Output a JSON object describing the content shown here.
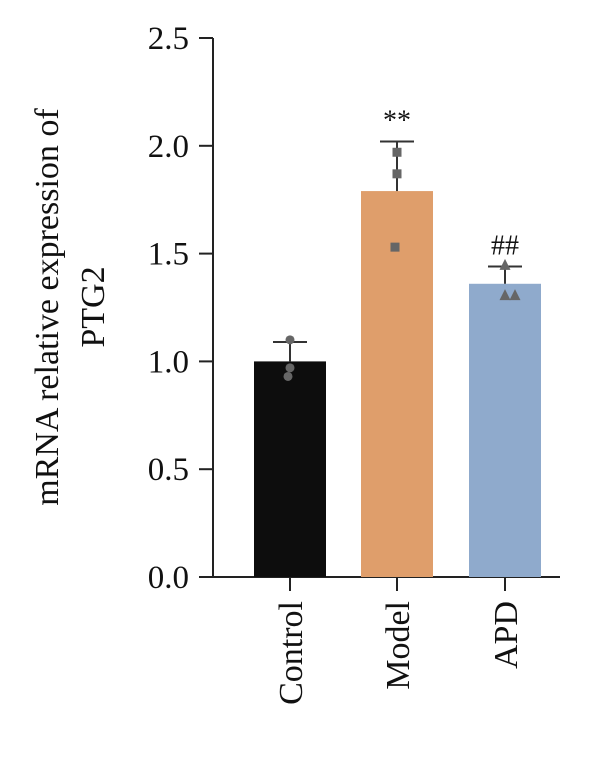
{
  "chart_data": {
    "type": "bar",
    "title": "",
    "xlabel": "",
    "ylabel_lines": [
      "mRNA relative expression of",
      "PTG2"
    ],
    "ylim": [
      0,
      2.5
    ],
    "yticks": [
      "0.0",
      "0.5",
      "1.0",
      "1.5",
      "2.0",
      "2.5"
    ],
    "categories": [
      "Control",
      "Model",
      "APD"
    ],
    "values": [
      1.0,
      1.79,
      1.36
    ],
    "errors": [
      0.09,
      0.23,
      0.08
    ],
    "points": [
      [
        1.1,
        0.97,
        0.93
      ],
      [
        1.97,
        1.87,
        1.53
      ],
      [
        1.45,
        1.31,
        1.31
      ]
    ],
    "point_markers": [
      "circle",
      "square",
      "triangle"
    ],
    "significance": [
      "",
      "**",
      "##"
    ],
    "colors": [
      "#0d0d0d",
      "#df9e6b",
      "#8faacc"
    ],
    "point_color": "#666666",
    "grid": false
  }
}
